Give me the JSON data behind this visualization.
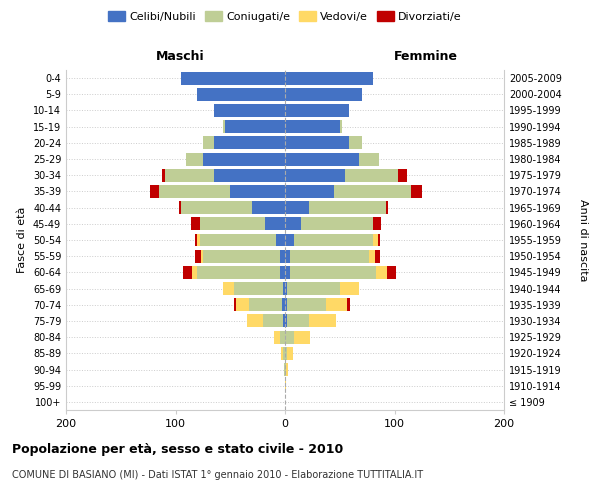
{
  "age_groups": [
    "100+",
    "95-99",
    "90-94",
    "85-89",
    "80-84",
    "75-79",
    "70-74",
    "65-69",
    "60-64",
    "55-59",
    "50-54",
    "45-49",
    "40-44",
    "35-39",
    "30-34",
    "25-29",
    "20-24",
    "15-19",
    "10-14",
    "5-9",
    "0-4"
  ],
  "birth_years": [
    "≤ 1909",
    "1910-1914",
    "1915-1919",
    "1920-1924",
    "1925-1929",
    "1930-1934",
    "1935-1939",
    "1940-1944",
    "1945-1949",
    "1950-1954",
    "1955-1959",
    "1960-1964",
    "1965-1969",
    "1970-1974",
    "1975-1979",
    "1980-1984",
    "1985-1989",
    "1990-1994",
    "1995-1999",
    "2000-2004",
    "2005-2009"
  ],
  "males": {
    "celibi": [
      0,
      0,
      0,
      0,
      0,
      2,
      3,
      2,
      5,
      5,
      8,
      18,
      30,
      50,
      65,
      75,
      65,
      55,
      65,
      80,
      95
    ],
    "coniugati": [
      0,
      0,
      1,
      2,
      5,
      18,
      30,
      45,
      75,
      70,
      70,
      60,
      65,
      65,
      45,
      15,
      10,
      2,
      0,
      0,
      0
    ],
    "vedovi": [
      0,
      0,
      0,
      2,
      5,
      15,
      12,
      10,
      5,
      2,
      2,
      0,
      0,
      0,
      0,
      0,
      0,
      0,
      0,
      0,
      0
    ],
    "divorziati": [
      0,
      0,
      0,
      0,
      0,
      0,
      2,
      0,
      8,
      5,
      2,
      8,
      2,
      8,
      2,
      0,
      0,
      0,
      0,
      0,
      0
    ]
  },
  "females": {
    "nubili": [
      0,
      0,
      0,
      0,
      0,
      2,
      2,
      2,
      5,
      5,
      8,
      15,
      22,
      45,
      55,
      68,
      58,
      50,
      58,
      70,
      80
    ],
    "coniugate": [
      0,
      0,
      1,
      2,
      8,
      20,
      35,
      48,
      78,
      72,
      72,
      65,
      70,
      70,
      48,
      18,
      12,
      2,
      0,
      0,
      0
    ],
    "vedove": [
      0,
      1,
      2,
      5,
      15,
      25,
      20,
      18,
      10,
      5,
      5,
      0,
      0,
      0,
      0,
      0,
      0,
      0,
      0,
      0,
      0
    ],
    "divorziate": [
      0,
      0,
      0,
      0,
      0,
      0,
      2,
      0,
      8,
      5,
      2,
      8,
      2,
      10,
      8,
      0,
      0,
      0,
      0,
      0,
      0
    ]
  },
  "colors": {
    "celibi": "#4472C4",
    "coniugati": "#BFCE96",
    "vedovi": "#FFD966",
    "divorziati": "#C00000"
  },
  "xlim": 200,
  "title": "Popolazione per età, sesso e stato civile - 2010",
  "subtitle": "COMUNE DI BASIANO (MI) - Dati ISTAT 1° gennaio 2010 - Elaborazione TUTTITALIA.IT",
  "legend_labels": [
    "Celibi/Nubili",
    "Coniugati/e",
    "Vedovi/e",
    "Divorziati/e"
  ],
  "ylabel_left": "Fasce di età",
  "ylabel_right": "Anni di nascita",
  "maschi_label": "Maschi",
  "femmine_label": "Femmine"
}
